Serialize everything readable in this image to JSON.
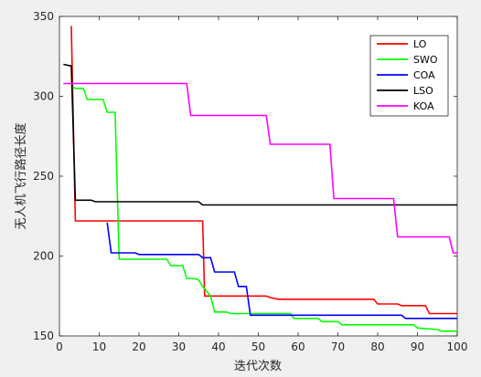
{
  "chart_data": {
    "type": "line",
    "title": "",
    "xlabel": "迭代次数",
    "ylabel": "无人机飞行路径长度",
    "xlim": [
      0,
      100
    ],
    "ylim": [
      150,
      350
    ],
    "xticks": [
      0,
      10,
      20,
      30,
      40,
      50,
      60,
      70,
      80,
      90,
      100
    ],
    "yticks": [
      150,
      200,
      250,
      300,
      350
    ],
    "grid": false,
    "legend_position": "top-right",
    "series": [
      {
        "name": "LO",
        "color": "#ff0000",
        "points": [
          [
            3,
            344
          ],
          [
            4,
            222
          ],
          [
            36,
            222
          ],
          [
            36.5,
            175
          ],
          [
            52,
            175
          ],
          [
            53,
            174
          ],
          [
            55,
            173
          ],
          [
            79,
            173
          ],
          [
            80,
            170
          ],
          [
            85,
            170
          ],
          [
            86,
            169
          ],
          [
            92,
            169
          ],
          [
            93,
            164
          ],
          [
            100,
            164
          ]
        ]
      },
      {
        "name": "SWO",
        "color": "#00ff00",
        "points": [
          [
            3,
            306
          ],
          [
            4,
            305
          ],
          [
            6,
            305
          ],
          [
            7,
            298
          ],
          [
            11,
            298
          ],
          [
            12,
            290
          ],
          [
            14,
            290
          ],
          [
            15,
            198
          ],
          [
            27,
            198
          ],
          [
            28,
            194
          ],
          [
            31,
            194
          ],
          [
            32,
            186
          ],
          [
            34,
            186
          ],
          [
            35,
            185
          ],
          [
            36,
            181
          ],
          [
            37,
            178
          ],
          [
            38,
            175
          ],
          [
            39,
            165
          ],
          [
            42,
            165
          ],
          [
            43,
            164
          ],
          [
            58,
            164
          ],
          [
            59,
            161
          ],
          [
            65,
            161
          ],
          [
            66,
            159
          ],
          [
            70,
            159
          ],
          [
            71,
            157
          ],
          [
            89,
            157
          ],
          [
            90,
            155
          ],
          [
            95,
            154
          ],
          [
            96,
            153
          ],
          [
            100,
            153
          ]
        ]
      },
      {
        "name": "COA",
        "color": "#0000ff",
        "points": [
          [
            12,
            221
          ],
          [
            13,
            202
          ],
          [
            19,
            202
          ],
          [
            20,
            201
          ],
          [
            35,
            201
          ],
          [
            36,
            199
          ],
          [
            38,
            199
          ],
          [
            39,
            190
          ],
          [
            44,
            190
          ],
          [
            45,
            181
          ],
          [
            47,
            181
          ],
          [
            48,
            163
          ],
          [
            86,
            163
          ],
          [
            87,
            161
          ],
          [
            100,
            161
          ]
        ]
      },
      {
        "name": "LSO",
        "color": "#000000",
        "points": [
          [
            1,
            320
          ],
          [
            3,
            319
          ],
          [
            4,
            235
          ],
          [
            8,
            235
          ],
          [
            9,
            234
          ],
          [
            35,
            234
          ],
          [
            36,
            232
          ],
          [
            100,
            232
          ]
        ]
      },
      {
        "name": "KOA",
        "color": "#ff00ff",
        "points": [
          [
            1,
            308
          ],
          [
            32,
            308
          ],
          [
            33,
            288
          ],
          [
            52,
            288
          ],
          [
            53,
            270
          ],
          [
            68,
            270
          ],
          [
            69,
            236
          ],
          [
            84,
            236
          ],
          [
            85,
            212
          ],
          [
            98,
            212
          ],
          [
            99,
            202
          ],
          [
            100,
            202
          ]
        ]
      }
    ]
  }
}
